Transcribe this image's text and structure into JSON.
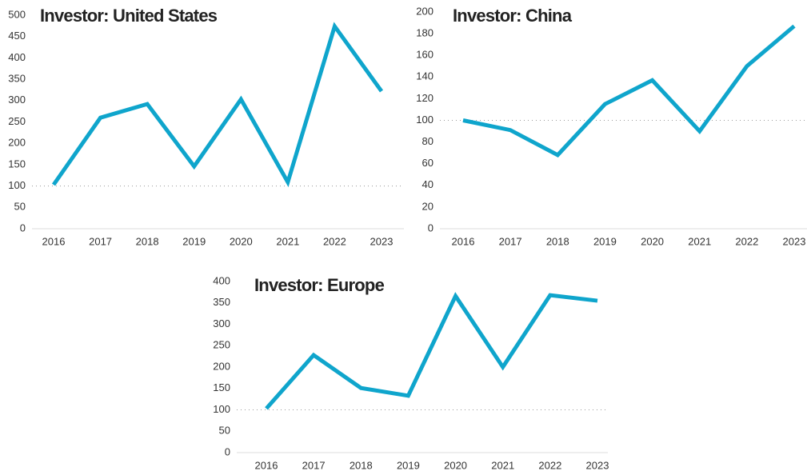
{
  "chart_data": [
    {
      "type": "line",
      "title": "Investor: United States",
      "categories": [
        "2016",
        "2017",
        "2018",
        "2019",
        "2020",
        "2021",
        "2022",
        "2023"
      ],
      "series": [
        {
          "name": "United States",
          "color": "#0fa5cc",
          "values": [
            103,
            260,
            292,
            146,
            303,
            109,
            474,
            322
          ]
        }
      ],
      "ylim": [
        0,
        500
      ],
      "yticks": [
        0,
        50,
        100,
        150,
        200,
        250,
        300,
        350,
        400,
        450,
        500
      ],
      "reference_line": 100
    },
    {
      "type": "line",
      "title": "Investor: China",
      "categories": [
        "2016",
        "2017",
        "2018",
        "2019",
        "2020",
        "2021",
        "2022",
        "2023"
      ],
      "series": [
        {
          "name": "China",
          "color": "#0fa5cc",
          "values": [
            100,
            91,
            68,
            115,
            137,
            90,
            150,
            187
          ]
        }
      ],
      "ylim": [
        0,
        200
      ],
      "yticks": [
        0,
        20,
        40,
        60,
        80,
        100,
        120,
        140,
        160,
        180,
        200
      ],
      "reference_line": 100
    },
    {
      "type": "line",
      "title": "Investor: Europe",
      "categories": [
        "2016",
        "2017",
        "2018",
        "2019",
        "2020",
        "2021",
        "2022",
        "2023"
      ],
      "series": [
        {
          "name": "Europe",
          "color": "#0fa5cc",
          "values": [
            103,
            228,
            151,
            133,
            366,
            200,
            368,
            355
          ]
        }
      ],
      "ylim": [
        0,
        400
      ],
      "yticks": [
        0,
        50,
        100,
        150,
        200,
        250,
        300,
        350,
        400
      ],
      "reference_line": 100
    }
  ]
}
